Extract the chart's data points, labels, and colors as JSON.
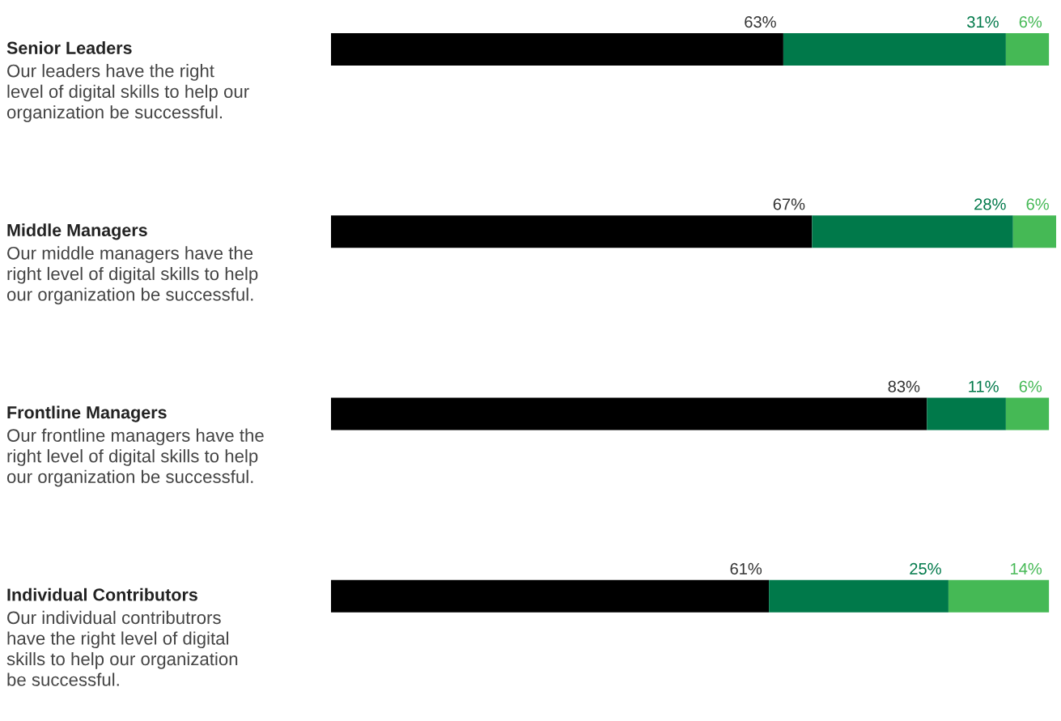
{
  "chart_data": {
    "type": "bar",
    "orientation": "horizontal",
    "stacked": true,
    "categories": [
      "Senior Leaders\nOur leaders have the right\nlevel of digital skills to help our\norganization be successful.",
      "Middle Managers\nOur middle managers have the\nright level of digital skills to help\nour organization be successful.",
      "Frontline Managers\nOur frontline managers have the\nright level of digital skills to help\nour organization be successful.",
      "Individual Contributors\nOur individual contributrors\nhave the right level of digital\nskills to help our organization\nbe successful."
    ],
    "series": [
      {
        "color": "#000000",
        "values": [
          63,
          67,
          83,
          61
        ],
        "value_labels": [
          "63%",
          "67%",
          "83%",
          "61%"
        ]
      },
      {
        "color": "#00794a",
        "values": [
          31,
          28,
          11,
          25
        ],
        "value_labels": [
          "31%",
          "28%",
          "11%",
          "25%"
        ]
      },
      {
        "color": "#45b955",
        "values": [
          6,
          6,
          6,
          14
        ],
        "value_labels": [
          "6%",
          "6%",
          "6%",
          "14%"
        ]
      }
    ],
    "tick_labels": false,
    "legend": false
  }
}
